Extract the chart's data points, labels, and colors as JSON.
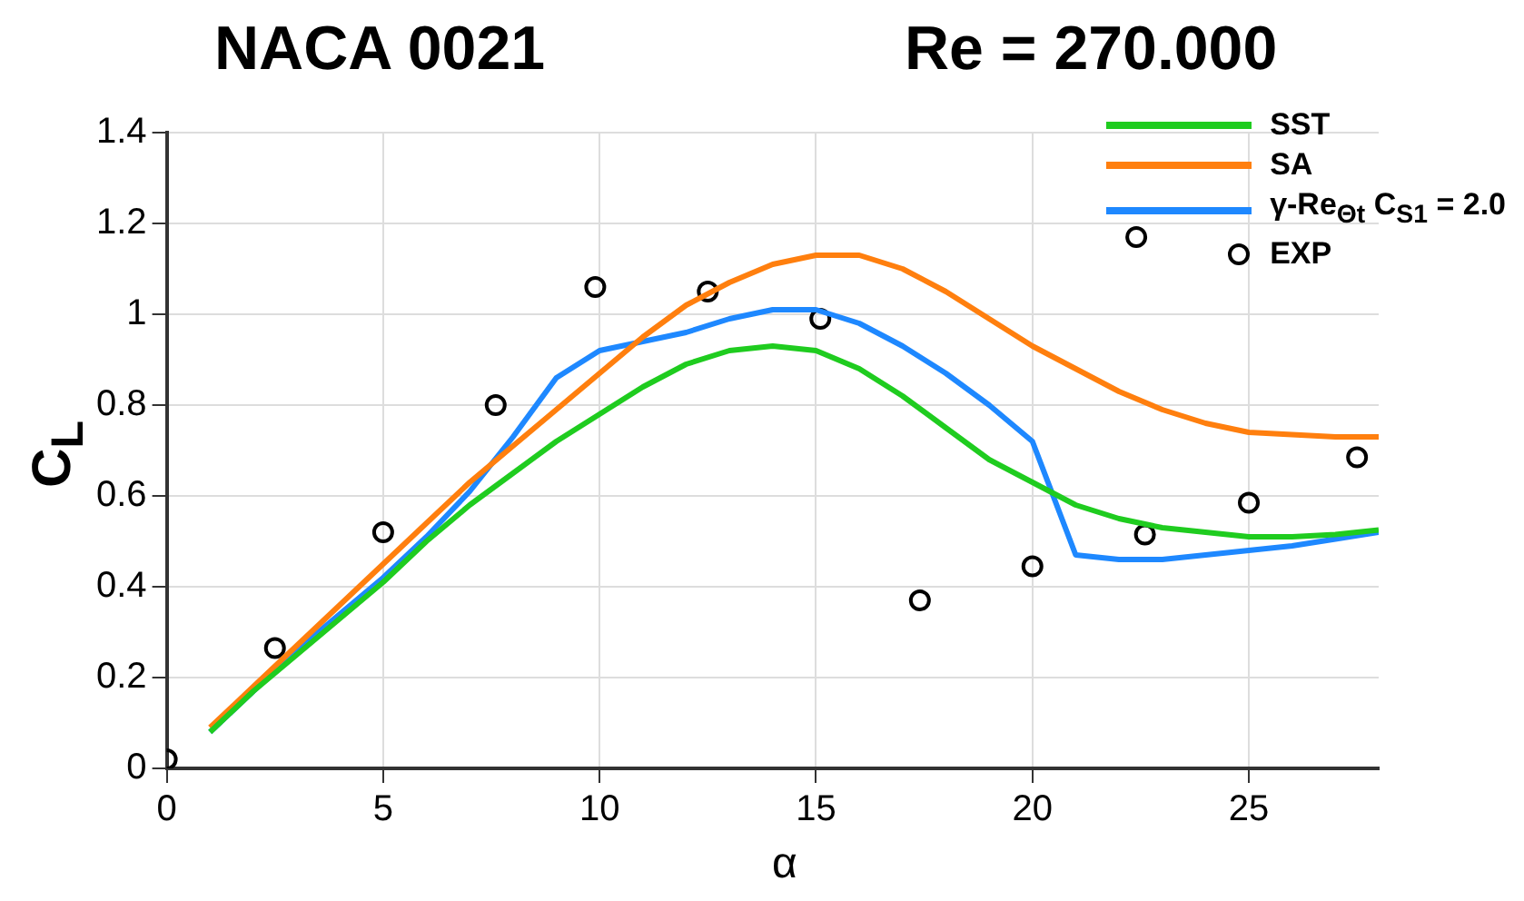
{
  "chart_data": {
    "type": "line",
    "title": "NACA 0021",
    "subtitle": "Re = 270.000",
    "xlabel": "α",
    "ylabel": "C$_{L}$",
    "x": [
      1,
      2,
      3,
      4,
      5,
      6,
      7,
      8,
      9,
      10,
      11,
      12,
      13,
      14,
      15,
      16,
      17,
      18,
      19,
      20,
      21,
      22,
      23,
      24,
      25,
      26,
      27,
      28
    ],
    "series": [
      {
        "name": "SST",
        "color": "#1fcc1f",
        "marker": "none",
        "values": [
          0.08,
          0.17,
          0.25,
          0.33,
          0.41,
          0.5,
          0.58,
          0.65,
          0.72,
          0.78,
          0.84,
          0.89,
          0.92,
          0.93,
          0.92,
          0.88,
          0.82,
          0.75,
          0.68,
          0.63,
          0.58,
          0.55,
          0.53,
          0.52,
          0.51,
          0.51,
          0.515,
          0.525
        ]
      },
      {
        "name": "SA",
        "color": "#ff7f0e",
        "marker": "none",
        "values": [
          0.09,
          0.18,
          0.27,
          0.36,
          0.45,
          0.54,
          0.63,
          0.71,
          0.79,
          0.87,
          0.95,
          1.02,
          1.07,
          1.11,
          1.13,
          1.13,
          1.1,
          1.05,
          0.99,
          0.93,
          0.88,
          0.83,
          0.79,
          0.76,
          0.74,
          0.735,
          0.73,
          0.73
        ]
      },
      {
        "name": "γ-Re$_{Θt}$ C$_{S1}$ = 2.0",
        "color": "#1e88ff",
        "marker": "none",
        "values": [
          0.08,
          0.17,
          0.26,
          0.34,
          0.42,
          0.51,
          0.61,
          0.73,
          0.86,
          0.92,
          0.94,
          0.96,
          0.99,
          1.01,
          1.01,
          0.98,
          0.93,
          0.87,
          0.8,
          0.72,
          0.47,
          0.46,
          0.46,
          0.47,
          0.48,
          0.49,
          0.505,
          0.52
        ]
      },
      {
        "name": "EXP",
        "color": "#000000",
        "type": "scatter",
        "marker": "circle",
        "x": [
          0,
          2.5,
          5,
          7.6,
          9.9,
          12.5,
          15.1,
          17.4,
          20,
          22.4,
          22.6,
          25,
          27.5
        ],
        "values": [
          0.02,
          0.265,
          0.52,
          0.8,
          1.06,
          1.05,
          0.99,
          0.37,
          0.445,
          1.17,
          0.515,
          0.585,
          0.685
        ]
      }
    ],
    "xlim": [
      0,
      28
    ],
    "xticks": [
      0,
      5,
      10,
      15,
      20,
      25
    ],
    "ylim": [
      0,
      1.4
    ],
    "yticks": [
      0,
      0.2,
      0.4,
      0.6,
      0.8,
      1,
      1.2,
      1.4
    ],
    "grid": true,
    "legend": "top right"
  }
}
